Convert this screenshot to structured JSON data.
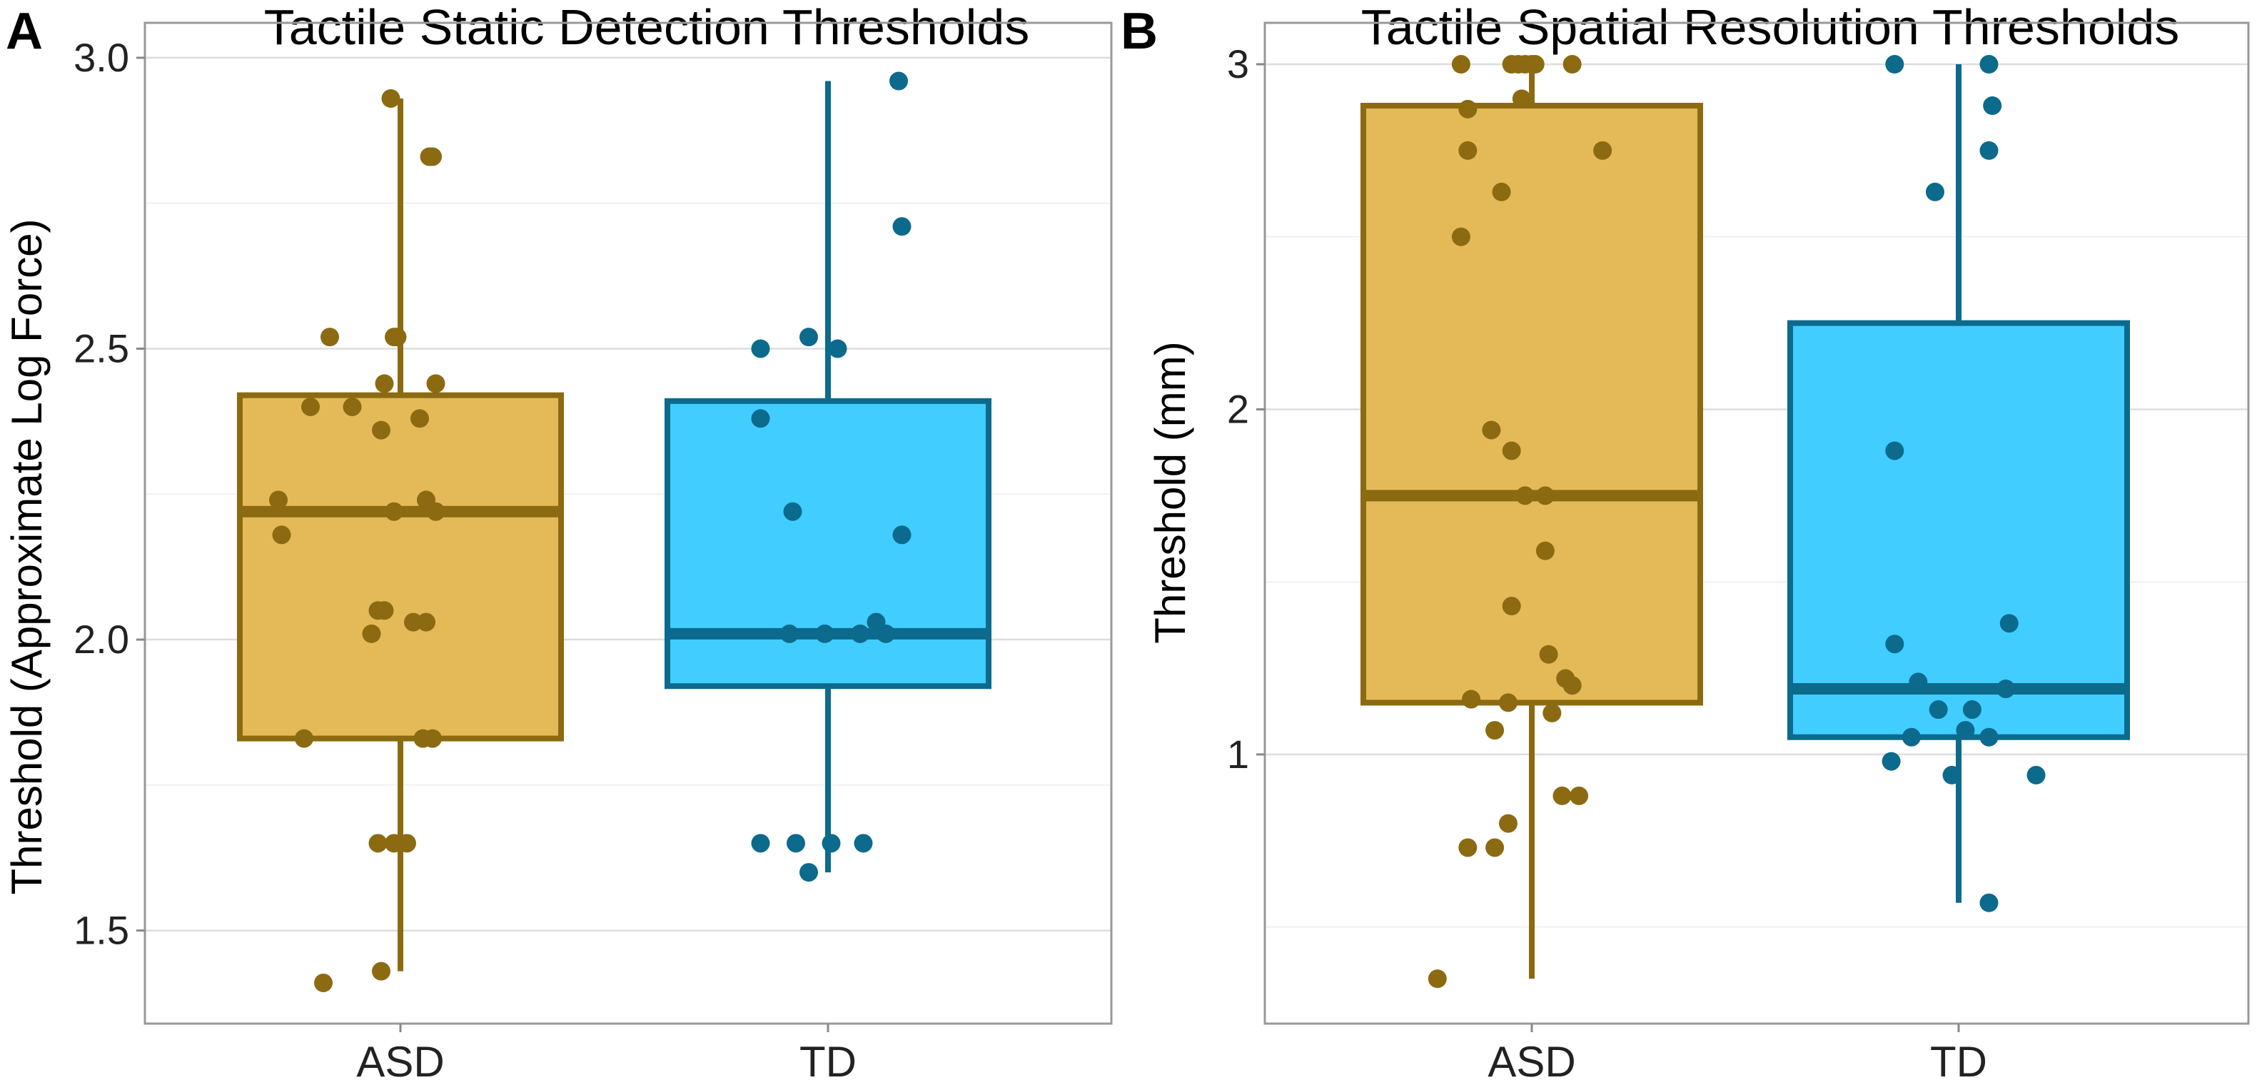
{
  "colors": {
    "asd_fill": "#E3BA57",
    "asd_stroke": "#8C6A12",
    "td_fill": "#41CDFF",
    "td_stroke": "#0C6A8C"
  },
  "chart_data": [
    {
      "type": "box",
      "panel_label": "A",
      "title": "Tactile Static Detection Thresholds",
      "xlabel": "",
      "ylabel": "Threshold (Approximate Log Force)",
      "categories": [
        "ASD",
        "TD"
      ],
      "ylim": [
        1.34,
        3.06
      ],
      "yticks": [
        1.5,
        2.0,
        2.5,
        3.0
      ],
      "ytick_labels": [
        "1.5",
        "2.0",
        "2.5",
        "3.0"
      ],
      "grid": true,
      "boxes": [
        {
          "group": "ASD",
          "whisker_low": 1.43,
          "q1": 1.83,
          "median": 2.22,
          "q3": 2.42,
          "whisker_high": 2.93
        },
        {
          "group": "TD",
          "whisker_low": 1.6,
          "q1": 1.92,
          "median": 2.01,
          "q3": 2.41,
          "whisker_high": 2.96
        }
      ],
      "points": [
        {
          "group": "ASD",
          "jitter": -0.03,
          "y": 2.93
        },
        {
          "group": "ASD",
          "jitter": 0.09,
          "y": 2.83
        },
        {
          "group": "ASD",
          "jitter": 0.1,
          "y": 2.83
        },
        {
          "group": "ASD",
          "jitter": -0.22,
          "y": 2.52
        },
        {
          "group": "ASD",
          "jitter": -0.01,
          "y": 2.52
        },
        {
          "group": "ASD",
          "jitter": -0.02,
          "y": 2.52
        },
        {
          "group": "ASD",
          "jitter": -0.05,
          "y": 2.44
        },
        {
          "group": "ASD",
          "jitter": 0.11,
          "y": 2.44
        },
        {
          "group": "ASD",
          "jitter": -0.28,
          "y": 2.4
        },
        {
          "group": "ASD",
          "jitter": -0.15,
          "y": 2.4
        },
        {
          "group": "ASD",
          "jitter": 0.06,
          "y": 2.38
        },
        {
          "group": "ASD",
          "jitter": -0.06,
          "y": 2.36
        },
        {
          "group": "ASD",
          "jitter": -0.38,
          "y": 2.24
        },
        {
          "group": "ASD",
          "jitter": 0.08,
          "y": 2.24
        },
        {
          "group": "ASD",
          "jitter": -0.02,
          "y": 2.22
        },
        {
          "group": "ASD",
          "jitter": 0.11,
          "y": 2.22
        },
        {
          "group": "ASD",
          "jitter": -0.37,
          "y": 2.18
        },
        {
          "group": "ASD",
          "jitter": -0.05,
          "y": 2.05
        },
        {
          "group": "ASD",
          "jitter": -0.07,
          "y": 2.05
        },
        {
          "group": "ASD",
          "jitter": 0.04,
          "y": 2.03
        },
        {
          "group": "ASD",
          "jitter": 0.08,
          "y": 2.03
        },
        {
          "group": "ASD",
          "jitter": -0.09,
          "y": 2.01
        },
        {
          "group": "ASD",
          "jitter": -0.3,
          "y": 1.83
        },
        {
          "group": "ASD",
          "jitter": 0.07,
          "y": 1.83
        },
        {
          "group": "ASD",
          "jitter": 0.1,
          "y": 1.83
        },
        {
          "group": "ASD",
          "jitter": -0.02,
          "y": 1.65
        },
        {
          "group": "ASD",
          "jitter": 0.02,
          "y": 1.65
        },
        {
          "group": "ASD",
          "jitter": -0.07,
          "y": 1.65
        },
        {
          "group": "ASD",
          "jitter": -0.06,
          "y": 1.43
        },
        {
          "group": "ASD",
          "jitter": -0.24,
          "y": 1.41
        },
        {
          "group": "TD",
          "jitter": 0.22,
          "y": 2.96
        },
        {
          "group": "TD",
          "jitter": 0.23,
          "y": 2.71
        },
        {
          "group": "TD",
          "jitter": -0.21,
          "y": 2.5
        },
        {
          "group": "TD",
          "jitter": -0.06,
          "y": 2.52
        },
        {
          "group": "TD",
          "jitter": 0.03,
          "y": 2.5
        },
        {
          "group": "TD",
          "jitter": -0.21,
          "y": 2.38
        },
        {
          "group": "TD",
          "jitter": -0.11,
          "y": 2.22
        },
        {
          "group": "TD",
          "jitter": 0.23,
          "y": 2.18
        },
        {
          "group": "TD",
          "jitter": 0.15,
          "y": 2.03
        },
        {
          "group": "TD",
          "jitter": -0.12,
          "y": 2.01
        },
        {
          "group": "TD",
          "jitter": -0.01,
          "y": 2.01
        },
        {
          "group": "TD",
          "jitter": 0.1,
          "y": 2.01
        },
        {
          "group": "TD",
          "jitter": 0.18,
          "y": 2.01
        },
        {
          "group": "TD",
          "jitter": -0.21,
          "y": 1.65
        },
        {
          "group": "TD",
          "jitter": -0.1,
          "y": 1.65
        },
        {
          "group": "TD",
          "jitter": 0.01,
          "y": 1.65
        },
        {
          "group": "TD",
          "jitter": 0.11,
          "y": 1.65
        },
        {
          "group": "TD",
          "jitter": -0.06,
          "y": 1.6
        }
      ]
    },
    {
      "type": "box",
      "panel_label": "B",
      "title": "Tactile Spatial Resolution Thresholds",
      "xlabel": "",
      "ylabel": "Threshold (mm)",
      "categories": [
        "ASD",
        "TD"
      ],
      "ylim": [
        0.22,
        3.12
      ],
      "yticks": [
        1,
        2,
        3
      ],
      "ytick_labels": [
        "1",
        "2",
        "3"
      ],
      "grid": true,
      "boxes": [
        {
          "group": "ASD",
          "whisker_low": 0.35,
          "q1": 1.15,
          "median": 1.75,
          "q3": 2.88,
          "whisker_high": 3.0
        },
        {
          "group": "TD",
          "whisker_low": 0.57,
          "q1": 1.05,
          "median": 1.19,
          "q3": 2.25,
          "whisker_high": 3.0
        }
      ],
      "points": [
        {
          "group": "ASD",
          "jitter": -0.21,
          "y": 3.0
        },
        {
          "group": "ASD",
          "jitter": -0.06,
          "y": 3.0
        },
        {
          "group": "ASD",
          "jitter": -0.04,
          "y": 3.0
        },
        {
          "group": "ASD",
          "jitter": -0.02,
          "y": 3.0
        },
        {
          "group": "ASD",
          "jitter": 0.0,
          "y": 3.0
        },
        {
          "group": "ASD",
          "jitter": 0.01,
          "y": 3.0
        },
        {
          "group": "ASD",
          "jitter": 0.12,
          "y": 3.0
        },
        {
          "group": "ASD",
          "jitter": -0.03,
          "y": 2.9
        },
        {
          "group": "ASD",
          "jitter": -0.19,
          "y": 2.87
        },
        {
          "group": "ASD",
          "jitter": -0.19,
          "y": 2.75
        },
        {
          "group": "ASD",
          "jitter": 0.21,
          "y": 2.75
        },
        {
          "group": "ASD",
          "jitter": -0.09,
          "y": 2.63
        },
        {
          "group": "ASD",
          "jitter": -0.21,
          "y": 2.5
        },
        {
          "group": "ASD",
          "jitter": -0.12,
          "y": 1.94
        },
        {
          "group": "ASD",
          "jitter": -0.06,
          "y": 1.88
        },
        {
          "group": "ASD",
          "jitter": -0.02,
          "y": 1.75
        },
        {
          "group": "ASD",
          "jitter": 0.04,
          "y": 1.75
        },
        {
          "group": "ASD",
          "jitter": 0.04,
          "y": 1.59
        },
        {
          "group": "ASD",
          "jitter": -0.06,
          "y": 1.43
        },
        {
          "group": "ASD",
          "jitter": 0.05,
          "y": 1.29
        },
        {
          "group": "ASD",
          "jitter": 0.1,
          "y": 1.22
        },
        {
          "group": "ASD",
          "jitter": 0.12,
          "y": 1.2
        },
        {
          "group": "ASD",
          "jitter": -0.18,
          "y": 1.16
        },
        {
          "group": "ASD",
          "jitter": -0.07,
          "y": 1.15
        },
        {
          "group": "ASD",
          "jitter": 0.06,
          "y": 1.12
        },
        {
          "group": "ASD",
          "jitter": -0.11,
          "y": 1.07
        },
        {
          "group": "ASD",
          "jitter": 0.09,
          "y": 0.88
        },
        {
          "group": "ASD",
          "jitter": 0.14,
          "y": 0.88
        },
        {
          "group": "ASD",
          "jitter": -0.07,
          "y": 0.8
        },
        {
          "group": "ASD",
          "jitter": -0.19,
          "y": 0.73
        },
        {
          "group": "ASD",
          "jitter": -0.11,
          "y": 0.73
        },
        {
          "group": "ASD",
          "jitter": -0.28,
          "y": 0.35
        },
        {
          "group": "TD",
          "jitter": -0.19,
          "y": 3.0
        },
        {
          "group": "TD",
          "jitter": 0.09,
          "y": 3.0
        },
        {
          "group": "TD",
          "jitter": 0.1,
          "y": 2.88
        },
        {
          "group": "TD",
          "jitter": 0.09,
          "y": 2.75
        },
        {
          "group": "TD",
          "jitter": -0.07,
          "y": 2.63
        },
        {
          "group": "TD",
          "jitter": -0.19,
          "y": 1.88
        },
        {
          "group": "TD",
          "jitter": 0.15,
          "y": 1.38
        },
        {
          "group": "TD",
          "jitter": -0.19,
          "y": 1.32
        },
        {
          "group": "TD",
          "jitter": -0.12,
          "y": 1.21
        },
        {
          "group": "TD",
          "jitter": 0.14,
          "y": 1.19
        },
        {
          "group": "TD",
          "jitter": -0.06,
          "y": 1.13
        },
        {
          "group": "TD",
          "jitter": 0.04,
          "y": 1.13
        },
        {
          "group": "TD",
          "jitter": -0.14,
          "y": 1.05
        },
        {
          "group": "TD",
          "jitter": 0.09,
          "y": 1.05
        },
        {
          "group": "TD",
          "jitter": 0.02,
          "y": 1.07
        },
        {
          "group": "TD",
          "jitter": -0.2,
          "y": 0.98
        },
        {
          "group": "TD",
          "jitter": -0.02,
          "y": 0.94
        },
        {
          "group": "TD",
          "jitter": 0.23,
          "y": 0.94
        },
        {
          "group": "TD",
          "jitter": 0.09,
          "y": 0.57
        }
      ]
    }
  ]
}
